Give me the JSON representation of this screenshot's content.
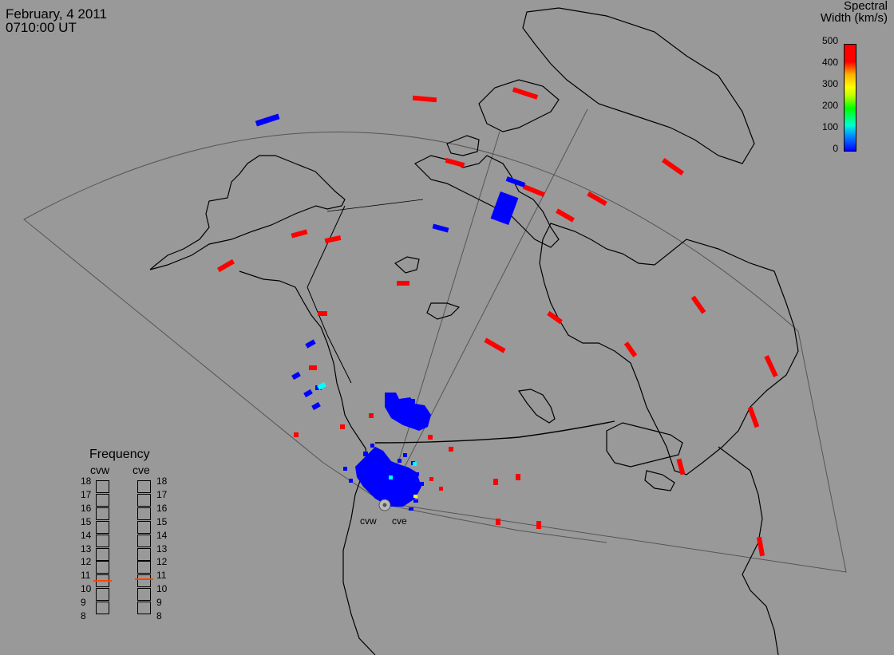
{
  "header": {
    "date": "February, 4 2011",
    "time": "0710:00 UT"
  },
  "colorbar": {
    "title_line1": "Spectral",
    "title_line2": "Width (km/s)",
    "ticks": [
      "500",
      "400",
      "300",
      "200",
      "100",
      "0"
    ]
  },
  "frequency": {
    "title": "Frequency",
    "radars": [
      "cvw",
      "cve"
    ],
    "scale": [
      "18",
      "17",
      "16",
      "15",
      "14",
      "13",
      "12",
      "11",
      "10",
      "9",
      "8"
    ],
    "cvw_value": 10.6,
    "cve_value": 10.7
  },
  "radars": {
    "cvw_label": "cvw",
    "cve_label": "cve"
  },
  "colors": {
    "background": "#999999",
    "low_width": "#0000ff",
    "high_width": "#ff0000",
    "mid_width": "#00ffff",
    "freq_marker": "#ff4400"
  },
  "map": {
    "projection": "polar stereographic North America",
    "features": [
      "coastlines",
      "fov-sector",
      "radar-beams",
      "scatter-cells"
    ]
  }
}
